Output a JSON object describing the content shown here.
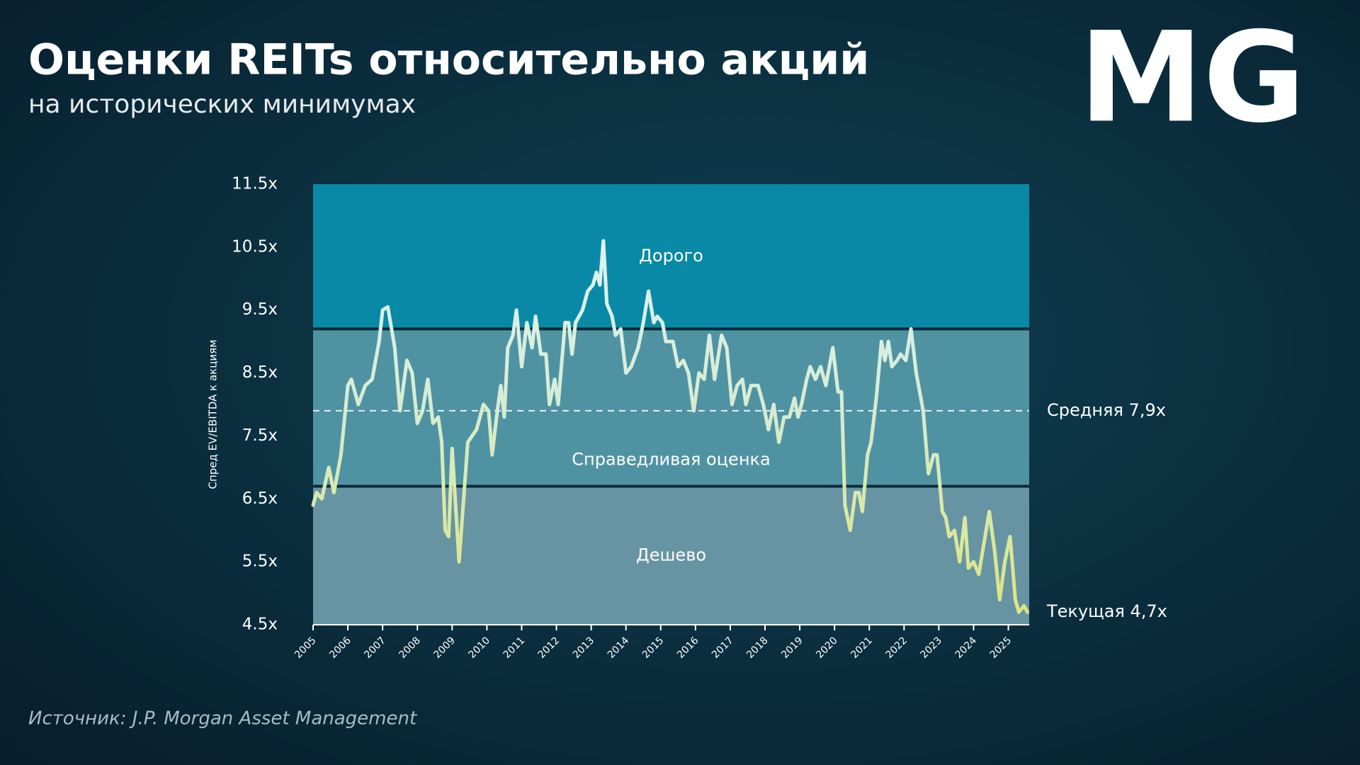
{
  "chart_data": {
    "type": "line",
    "title": "Оценки REITs относительно акций",
    "subtitle": "на исторических минимумах",
    "logo": "MG",
    "ylabel": "Спред EV/EBITDA к акциям",
    "source": "Источник: J.P. Morgan Asset Management",
    "xlim": [
      2005,
      2025.6
    ],
    "xticks": [
      2005,
      2006,
      2007,
      2008,
      2009,
      2010,
      2011,
      2012,
      2013,
      2014,
      2015,
      2016,
      2017,
      2018,
      2019,
      2020,
      2021,
      2022,
      2023,
      2024,
      2025
    ],
    "ylim": [
      4.5,
      11.5
    ],
    "yticks": [
      {
        "value": 4.5,
        "label": "4.5x"
      },
      {
        "value": 5.5,
        "label": "5.5x"
      },
      {
        "value": 6.5,
        "label": "6.5x"
      },
      {
        "value": 7.5,
        "label": "7.5x"
      },
      {
        "value": 8.5,
        "label": "8.5x"
      },
      {
        "value": 9.5,
        "label": "9.5x"
      },
      {
        "value": 10.5,
        "label": "10.5x"
      },
      {
        "value": 11.5,
        "label": "11.5x"
      }
    ],
    "zones": [
      {
        "label": "Дорого",
        "from": 9.2,
        "to": 11.5,
        "color": "#0a89a6"
      },
      {
        "label": "Справедливая оценка",
        "from": 6.7,
        "to": 9.2,
        "color": "#4f93a3"
      },
      {
        "label": "Дешево",
        "from": 4.5,
        "to": 6.7,
        "color": "#6794a3"
      }
    ],
    "mean": {
      "value": 7.9,
      "label": "Средняя 7,9x"
    },
    "current": {
      "value": 4.7,
      "label": "Текущая 4,7x"
    },
    "line_colors": [
      "#dff6ff",
      "#d6ecd2",
      "#dbe57a"
    ],
    "x": [
      2005.0,
      2005.1,
      2005.25,
      2005.45,
      2005.6,
      2005.8,
      2006.0,
      2006.1,
      2006.3,
      2006.5,
      2006.7,
      2006.9,
      2007.0,
      2007.15,
      2007.35,
      2007.5,
      2007.7,
      2007.85,
      2008.0,
      2008.15,
      2008.3,
      2008.45,
      2008.6,
      2008.7,
      2008.8,
      2008.9,
      2009.0,
      2009.2,
      2009.45,
      2009.7,
      2009.9,
      2010.05,
      2010.15,
      2010.3,
      2010.4,
      2010.5,
      2010.6,
      2010.75,
      2010.85,
      2011.0,
      2011.15,
      2011.3,
      2011.4,
      2011.55,
      2011.7,
      2011.8,
      2011.95,
      2012.05,
      2012.25,
      2012.35,
      2012.45,
      2012.55,
      2012.75,
      2012.9,
      2013.05,
      2013.15,
      2013.25,
      2013.35,
      2013.45,
      2013.6,
      2013.7,
      2013.85,
      2014.0,
      2014.15,
      2014.35,
      2014.5,
      2014.65,
      2014.8,
      2014.9,
      2015.05,
      2015.15,
      2015.35,
      2015.5,
      2015.65,
      2015.8,
      2015.95,
      2016.1,
      2016.25,
      2016.4,
      2016.55,
      2016.75,
      2016.9,
      2017.05,
      2017.2,
      2017.35,
      2017.45,
      2017.6,
      2017.8,
      2017.95,
      2018.1,
      2018.25,
      2018.4,
      2018.55,
      2018.7,
      2018.85,
      2018.95,
      2019.05,
      2019.2,
      2019.3,
      2019.45,
      2019.6,
      2019.75,
      2019.95,
      2020.1,
      2020.2,
      2020.3,
      2020.45,
      2020.6,
      2020.7,
      2020.8,
      2020.95,
      2021.05,
      2021.2,
      2021.35,
      2021.45,
      2021.55,
      2021.65,
      2021.8,
      2021.9,
      2022.05,
      2022.2,
      2022.35,
      2022.55,
      2022.7,
      2022.85,
      2022.95,
      2023.1,
      2023.2,
      2023.3,
      2023.45,
      2023.6,
      2023.75,
      2023.85,
      2024.0,
      2024.15,
      2024.3,
      2024.45,
      2024.6,
      2024.75,
      2024.9,
      2025.05,
      2025.2,
      2025.3,
      2025.45,
      2025.55
    ],
    "values": [
      6.4,
      6.6,
      6.5,
      7.0,
      6.6,
      7.2,
      8.3,
      8.4,
      8.0,
      8.3,
      8.4,
      9.0,
      9.5,
      9.55,
      8.9,
      7.9,
      8.7,
      8.5,
      7.7,
      7.9,
      8.4,
      7.7,
      7.8,
      7.4,
      6.0,
      5.9,
      7.3,
      5.5,
      7.4,
      7.6,
      8.0,
      7.9,
      7.2,
      7.9,
      8.3,
      7.8,
      8.9,
      9.1,
      9.5,
      8.6,
      9.3,
      8.9,
      9.4,
      8.8,
      8.8,
      8.0,
      8.4,
      8.0,
      9.3,
      9.3,
      8.8,
      9.3,
      9.5,
      9.8,
      9.9,
      10.1,
      9.9,
      10.6,
      9.6,
      9.4,
      9.1,
      9.2,
      8.5,
      8.6,
      8.9,
      9.3,
      9.8,
      9.3,
      9.4,
      9.3,
      9.0,
      9.0,
      8.6,
      8.7,
      8.5,
      7.9,
      8.5,
      8.4,
      9.1,
      8.4,
      9.1,
      8.9,
      8.0,
      8.3,
      8.4,
      8.0,
      8.3,
      8.3,
      8.0,
      7.6,
      8.0,
      7.4,
      7.8,
      7.8,
      8.1,
      7.8,
      8.0,
      8.4,
      8.6,
      8.4,
      8.6,
      8.3,
      8.9,
      8.2,
      8.2,
      6.4,
      6.0,
      6.6,
      6.6,
      6.3,
      7.2,
      7.4,
      8.1,
      9.0,
      8.7,
      9.0,
      8.6,
      8.7,
      8.8,
      8.7,
      9.2,
      8.5,
      7.9,
      6.9,
      7.2,
      7.2,
      6.3,
      6.2,
      5.9,
      6.0,
      5.5,
      6.2,
      5.4,
      5.5,
      5.3,
      5.8,
      6.3,
      5.7,
      4.9,
      5.5,
      5.9,
      4.9,
      4.7,
      4.8,
      4.7
    ]
  }
}
